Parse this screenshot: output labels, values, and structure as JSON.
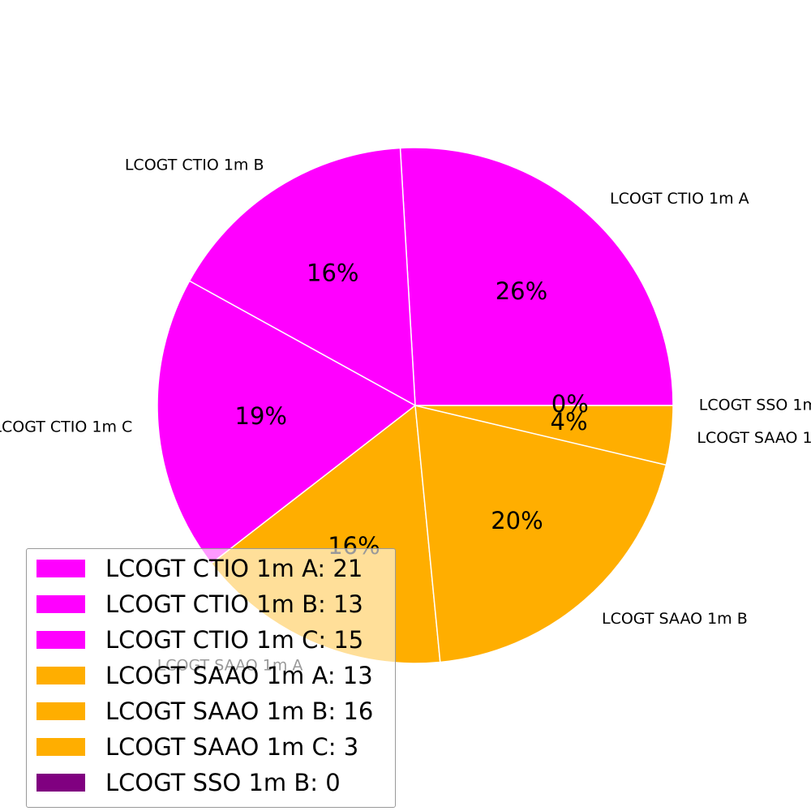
{
  "chart_data": {
    "type": "pie",
    "slices": [
      {
        "label": "LCOGT CTIO 1m A",
        "value": 21,
        "pct_text": "26%",
        "color": "#ff00ff",
        "legend_text": "LCOGT CTIO 1m A: 21"
      },
      {
        "label": "LCOGT CTIO 1m B",
        "value": 13,
        "pct_text": "16%",
        "color": "#ff00ff",
        "legend_text": "LCOGT CTIO 1m B: 13"
      },
      {
        "label": "LCOGT CTIO 1m C",
        "value": 15,
        "pct_text": "19%",
        "color": "#ff00ff",
        "legend_text": "LCOGT CTIO 1m C: 15"
      },
      {
        "label": "LCOGT SAAO 1m A",
        "value": 13,
        "pct_text": "16%",
        "color": "#ffae00",
        "legend_text": "LCOGT SAAO 1m A: 13"
      },
      {
        "label": "LCOGT SAAO 1m B",
        "value": 16,
        "pct_text": "20%",
        "color": "#ffae00",
        "legend_text": "LCOGT SAAO 1m B: 16"
      },
      {
        "label": "LCOGT SAAO 1m C",
        "value": 3,
        "pct_text": "4%",
        "color": "#ffae00",
        "legend_text": "LCOGT SAAO 1m C: 3"
      },
      {
        "label": "LCOGT SSO 1m B",
        "value": 0,
        "pct_text": "0%",
        "color": "#800080",
        "legend_text": "LCOGT SSO 1m B: 0"
      }
    ],
    "start_angle": "0 degrees, counterclockwise",
    "legend_position": "lower-left"
  }
}
